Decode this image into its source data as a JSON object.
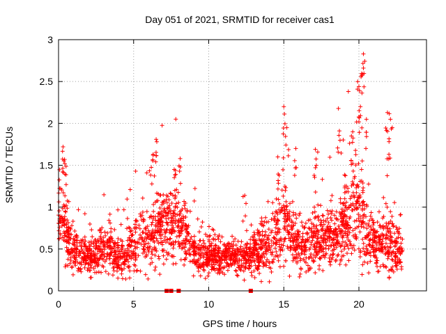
{
  "chart_data": {
    "type": "scatter",
    "title": "Day 051 of 2021, SRMTID for receiver cas1",
    "xlabel": "GPS time / hours",
    "ylabel": "SRMTID / TECUs",
    "xlim": [
      0,
      24.5
    ],
    "ylim": [
      0,
      3
    ],
    "xticks": [
      0,
      5,
      10,
      15,
      20
    ],
    "xtick_labels": [
      "0",
      "5",
      "10",
      "15",
      "20"
    ],
    "yticks": [
      0,
      0.5,
      1,
      1.5,
      2,
      2.5,
      3
    ],
    "ytick_labels": [
      "0",
      "0.5",
      "1",
      "1.5",
      "2",
      "2.5",
      "3"
    ],
    "grid": true,
    "marker": "plus",
    "color": "#ff0000",
    "profile": {
      "description": "approximate envelope of the dense scatter of SRMTID values vs GPS time",
      "x": [
        0,
        0.3,
        0.6,
        1,
        1.5,
        2,
        2.5,
        3,
        3.5,
        4,
        4.5,
        5,
        5.5,
        6,
        6.5,
        7,
        7.5,
        8,
        8.5,
        9,
        9.5,
        10,
        10.5,
        11,
        11.5,
        12,
        12.5,
        13,
        13.5,
        14,
        14.5,
        15,
        15.5,
        16,
        16.5,
        17,
        17.5,
        18,
        18.5,
        19,
        19.5,
        20,
        20.5,
        21,
        21.5,
        22,
        22.5,
        22.9
      ],
      "center": [
        1.0,
        0.95,
        0.6,
        0.5,
        0.42,
        0.4,
        0.45,
        0.5,
        0.45,
        0.42,
        0.45,
        0.55,
        0.6,
        0.65,
        0.7,
        0.75,
        0.8,
        0.75,
        0.65,
        0.45,
        0.42,
        0.4,
        0.42,
        0.4,
        0.42,
        0.38,
        0.4,
        0.45,
        0.5,
        0.55,
        0.7,
        0.85,
        0.7,
        0.5,
        0.55,
        0.6,
        0.65,
        0.7,
        0.65,
        0.75,
        0.9,
        1.0,
        0.7,
        0.55,
        0.6,
        0.55,
        0.5,
        0.45
      ],
      "spread": [
        0.3,
        0.35,
        0.25,
        0.2,
        0.18,
        0.18,
        0.2,
        0.22,
        0.2,
        0.2,
        0.22,
        0.25,
        0.3,
        0.35,
        0.35,
        0.35,
        0.35,
        0.35,
        0.3,
        0.2,
        0.18,
        0.18,
        0.18,
        0.15,
        0.15,
        0.15,
        0.15,
        0.2,
        0.25,
        0.3,
        0.35,
        0.45,
        0.3,
        0.25,
        0.25,
        0.3,
        0.3,
        0.3,
        0.3,
        0.35,
        0.45,
        0.5,
        0.35,
        0.25,
        0.3,
        0.35,
        0.25,
        0.2
      ]
    },
    "peaks": [
      {
        "x": 0.3,
        "y": 1.72
      },
      {
        "x": 0.4,
        "y": 1.57
      },
      {
        "x": 6.3,
        "y": 1.63
      },
      {
        "x": 6.5,
        "y": 1.81
      },
      {
        "x": 7.7,
        "y": 1.45
      },
      {
        "x": 8.1,
        "y": 1.58
      },
      {
        "x": 12.4,
        "y": 1.14
      },
      {
        "x": 14.6,
        "y": 1.6
      },
      {
        "x": 15.0,
        "y": 2.2
      },
      {
        "x": 15.2,
        "y": 1.95
      },
      {
        "x": 15.8,
        "y": 1.7
      },
      {
        "x": 17.1,
        "y": 1.69
      },
      {
        "x": 18.7,
        "y": 1.91
      },
      {
        "x": 19.5,
        "y": 1.85
      },
      {
        "x": 20.0,
        "y": 2.44
      },
      {
        "x": 20.1,
        "y": 2.2
      },
      {
        "x": 20.3,
        "y": 2.83
      },
      {
        "x": 20.3,
        "y": 2.66
      },
      {
        "x": 20.5,
        "y": 2.05
      },
      {
        "x": 21.9,
        "y": 2.13
      },
      {
        "x": 22.0,
        "y": 1.63
      },
      {
        "x": 22.1,
        "y": 2.05
      }
    ],
    "zero_markers_x": [
      7.2,
      7.5,
      8.0,
      12.8
    ]
  }
}
